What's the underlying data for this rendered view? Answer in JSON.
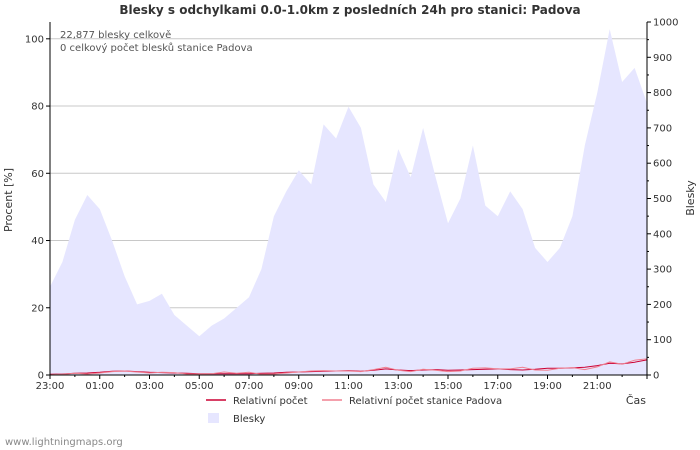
{
  "chart_data": {
    "type": "area",
    "title": "Blesky s odchylkami 0.0-1.0km z posledních 24h pro stanici: Padova",
    "ylabel_left": "Procent   [%]",
    "ylabel_right": "Blesky",
    "xlabel": "Čas",
    "ylim_left": [
      0,
      105
    ],
    "ylim_right": [
      0,
      1000
    ],
    "left_ticks": [
      0,
      20,
      40,
      60,
      80,
      100
    ],
    "right_ticks": [
      0,
      100,
      200,
      300,
      400,
      500,
      600,
      700,
      800,
      900,
      1000
    ],
    "x_ticks": [
      "23:00",
      "01:00",
      "03:00",
      "05:00",
      "07:00",
      "09:00",
      "11:00",
      "13:00",
      "15:00",
      "17:00",
      "19:00",
      "21:00"
    ],
    "annotations": [
      "22,877 blesky celkově",
      "0 celkový počet blesků stanice Padova"
    ],
    "grid": true,
    "series": [
      {
        "name": "Blesky",
        "axis": "right",
        "color": "#e6e6ff",
        "x": [
          0,
          0.5,
          1,
          1.5,
          2,
          2.5,
          3,
          3.5,
          4,
          4.5,
          5,
          5.5,
          6,
          6.5,
          7,
          7.5,
          8,
          8.5,
          9,
          9.5,
          10,
          10.5,
          11,
          11.5,
          12,
          12.5,
          13,
          13.5,
          14,
          14.5,
          15,
          15.5,
          16,
          16.5,
          17,
          17.5,
          18,
          18.5,
          19,
          19.5,
          20,
          20.5,
          21,
          21.5,
          22,
          22.5,
          23,
          23.5,
          24
        ],
        "values": [
          250,
          320,
          440,
          510,
          470,
          380,
          280,
          200,
          210,
          230,
          170,
          140,
          110,
          140,
          160,
          190,
          220,
          300,
          450,
          520,
          580,
          540,
          710,
          670,
          760,
          700,
          540,
          490,
          640,
          560,
          700,
          560,
          430,
          500,
          650,
          480,
          450,
          520,
          470,
          360,
          320,
          360,
          450,
          650,
          800,
          980,
          830,
          870,
          770
        ]
      },
      {
        "name": "Relativní počet",
        "axis": "left",
        "color": "#cc0033",
        "x": [
          0,
          0.5,
          1,
          1.5,
          2,
          2.5,
          3,
          3.5,
          4,
          4.5,
          5,
          5.5,
          6,
          6.5,
          7,
          7.5,
          8,
          8.5,
          9,
          9.5,
          10,
          10.5,
          11,
          11.5,
          12,
          12.5,
          13,
          13.5,
          14,
          14.5,
          15,
          15.5,
          16,
          16.5,
          17,
          17.5,
          18,
          18.5,
          19,
          19.5,
          20,
          20.5,
          21,
          21.5,
          22,
          22.5,
          23,
          23.5,
          24
        ],
        "values": [
          0.2,
          0.3,
          0.5,
          0.6,
          0.8,
          1.1,
          1.2,
          1.0,
          0.8,
          0.7,
          0.6,
          0.5,
          0.4,
          0.4,
          0.4,
          0.4,
          0.4,
          0.5,
          0.6,
          0.8,
          0.9,
          1.0,
          1.1,
          1.2,
          1.3,
          1.1,
          1.4,
          1.8,
          1.5,
          1.3,
          1.5,
          1.6,
          1.4,
          1.5,
          1.6,
          1.7,
          1.8,
          1.6,
          1.5,
          1.7,
          2.0,
          2.0,
          2.1,
          2.3,
          2.8,
          3.5,
          3.3,
          3.8,
          4.5
        ]
      },
      {
        "name": "Relativní počet stanice Padova",
        "axis": "left",
        "color": "#f08090",
        "x": [
          0,
          0.5,
          1,
          1.5,
          2,
          2.5,
          3,
          3.5,
          4,
          4.5,
          5,
          5.5,
          6,
          6.5,
          7,
          7.5,
          8,
          8.5,
          9,
          9.5,
          10,
          10.5,
          11,
          11.5,
          12,
          12.5,
          13,
          13.5,
          14,
          14.5,
          15,
          15.5,
          16,
          16.5,
          17,
          17.5,
          18,
          18.5,
          19,
          19.5,
          20,
          20.5,
          21,
          21.5,
          22,
          22.5,
          23,
          23.5,
          24
        ],
        "values": [
          0.1,
          0.2,
          0.5,
          0.3,
          0.6,
          1.0,
          1.2,
          0.9,
          0.6,
          0.8,
          0.7,
          0.3,
          0.3,
          0.4,
          0.9,
          0.5,
          0.8,
          0.2,
          0.3,
          0.6,
          0.9,
          1.2,
          1.3,
          1.2,
          1.2,
          1.0,
          1.6,
          2.3,
          1.4,
          1.0,
          1.7,
          1.4,
          1.0,
          1.2,
          2.0,
          2.1,
          1.8,
          1.8,
          2.3,
          1.5,
          1.4,
          2.0,
          2.2,
          1.6,
          2.4,
          3.9,
          3.2,
          4.4,
          4.8
        ]
      }
    ]
  },
  "footer": {
    "credit": "www.lightningmaps.org"
  }
}
